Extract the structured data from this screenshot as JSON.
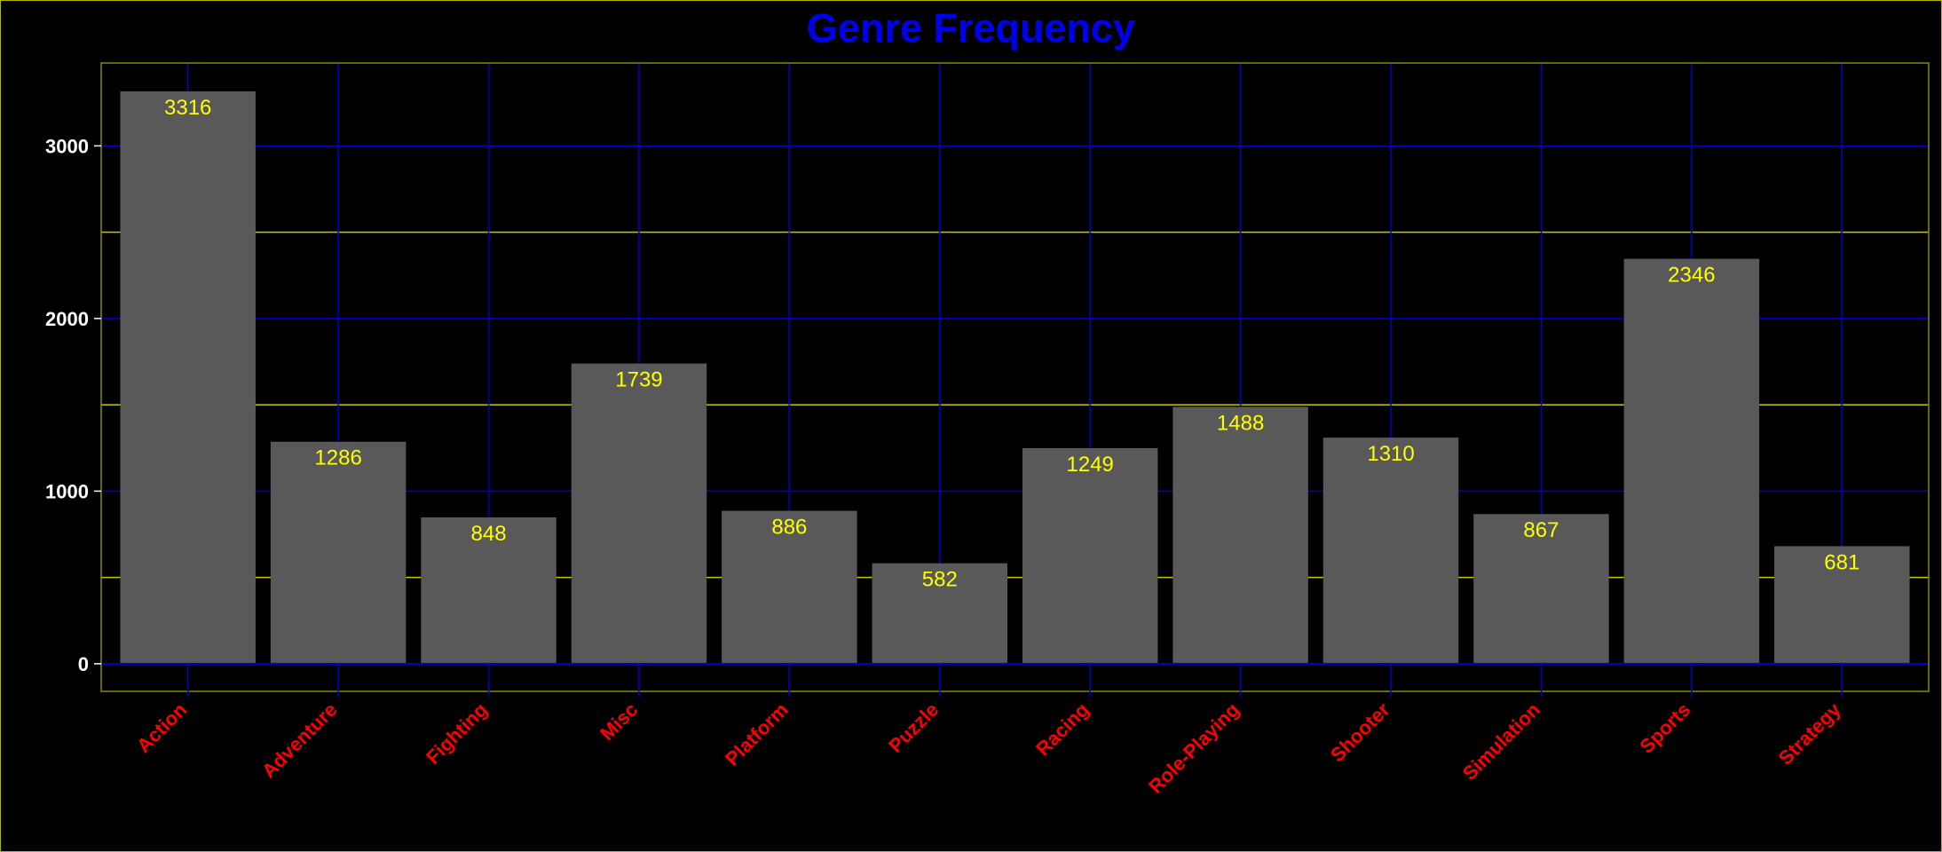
{
  "chart_data": {
    "type": "bar",
    "title": "Genre Frequency",
    "xlabel": "",
    "ylabel": "",
    "categories": [
      "Action",
      "Adventure",
      "Fighting",
      "Misc",
      "Platform",
      "Puzzle",
      "Racing",
      "Role-Playing",
      "Shooter",
      "Simulation",
      "Sports",
      "Strategy"
    ],
    "values": [
      3316,
      1286,
      848,
      1739,
      886,
      582,
      1249,
      1488,
      1310,
      867,
      2346,
      681
    ],
    "yticks": [
      0,
      1000,
      2000,
      3000
    ],
    "ylim": [
      -160,
      3480
    ],
    "grid": true,
    "data_labels": true,
    "colors": {
      "background": "#000000",
      "bar": "#595959",
      "title": "#0000ee",
      "major_grid": "#0000cc",
      "minor_grid": "#c8c800",
      "frame": "#8a8a00",
      "ytick_text": "#ffffff",
      "xtick_text": "#ff0000",
      "data_label_text": "#ffff00"
    }
  }
}
